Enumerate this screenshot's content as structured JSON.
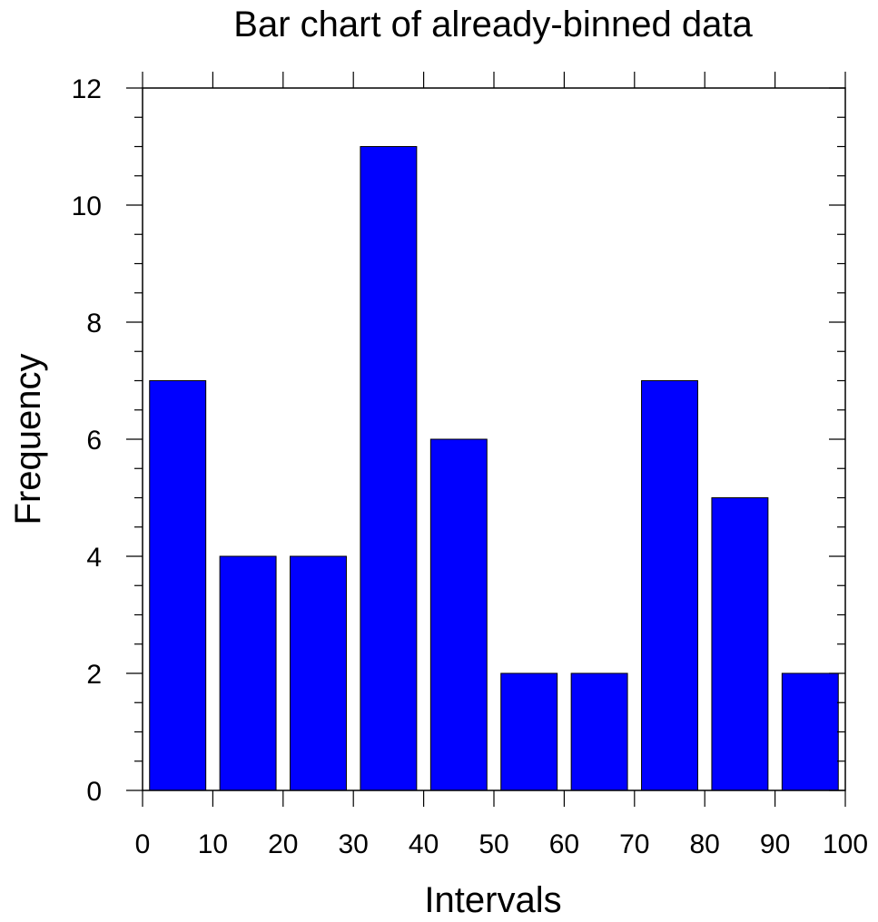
{
  "chart_data": {
    "type": "bar",
    "title": "Bar chart of already-binned data",
    "xlabel": "Intervals",
    "ylabel": "Frequency",
    "bins": [
      {
        "start": 0,
        "end": 10,
        "value": 7
      },
      {
        "start": 10,
        "end": 20,
        "value": 4
      },
      {
        "start": 20,
        "end": 30,
        "value": 4
      },
      {
        "start": 30,
        "end": 40,
        "value": 11
      },
      {
        "start": 40,
        "end": 50,
        "value": 6
      },
      {
        "start": 50,
        "end": 60,
        "value": 2
      },
      {
        "start": 60,
        "end": 70,
        "value": 2
      },
      {
        "start": 70,
        "end": 80,
        "value": 7
      },
      {
        "start": 80,
        "end": 90,
        "value": 5
      },
      {
        "start": 90,
        "end": 100,
        "value": 2
      }
    ],
    "xlim": [
      0,
      100
    ],
    "ylim": [
      0,
      12
    ],
    "x_ticks": [
      "0",
      "10",
      "20",
      "30",
      "40",
      "50",
      "60",
      "70",
      "80",
      "90",
      "100"
    ],
    "y_ticks": [
      "0",
      "2",
      "4",
      "6",
      "8",
      "10",
      "12"
    ],
    "bar_color": "#0000ff",
    "bar_edge_color": "#000000",
    "grid": false,
    "legend": "none"
  }
}
